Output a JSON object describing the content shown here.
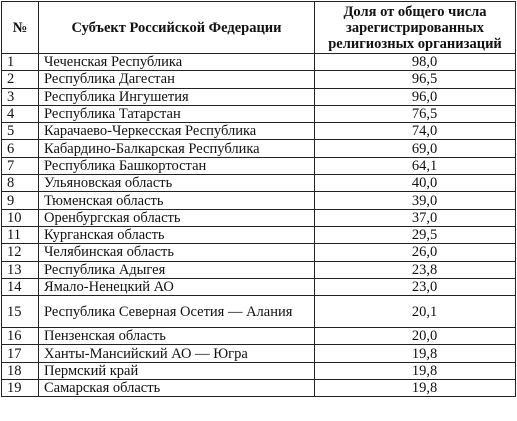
{
  "table": {
    "headers": {
      "num": "№",
      "subject": "Субъект Российской Федерации",
      "share": "Доля от общего числа зарегистрированных религиозных организаций"
    },
    "rows": [
      {
        "n": "1",
        "subject": "Чеченская Республика",
        "value": "98,0"
      },
      {
        "n": "2",
        "subject": "Республика Дагестан",
        "value": "96,5"
      },
      {
        "n": "3",
        "subject": "Республика Ингушетия",
        "value": "96,0"
      },
      {
        "n": "4",
        "subject": "Республика Татарстан",
        "value": "76,5"
      },
      {
        "n": "5",
        "subject": "Карачаево-Черкесская Республика",
        "value": "74,0"
      },
      {
        "n": "6",
        "subject": "Кабардино-Балкарская Республика",
        "value": "69,0"
      },
      {
        "n": "7",
        "subject": "Республика Башкортостан",
        "value": "64,1"
      },
      {
        "n": "8",
        "subject": "Ульяновская область",
        "value": "40,0"
      },
      {
        "n": "9",
        "subject": "Тюменская область",
        "value": "39,0"
      },
      {
        "n": "10",
        "subject": "Оренбургская область",
        "value": "37,0"
      },
      {
        "n": "11",
        "subject": "Курганская область",
        "value": "29,5"
      },
      {
        "n": "12",
        "subject": "Челябинская область",
        "value": "26,0"
      },
      {
        "n": "13",
        "subject": "Республика Адыгея",
        "value": "23,8"
      },
      {
        "n": "14",
        "subject": "Ямало-Ненецкий АО",
        "value": "23,0"
      },
      {
        "n": "15",
        "subject": "Республика Северная Осетия — Алания",
        "value": "20,1"
      },
      {
        "n": "16",
        "subject": "Пензенская область",
        "value": "20,0"
      },
      {
        "n": "17",
        "subject": "Ханты-Мансийский АО — Югра",
        "value": "19,8"
      },
      {
        "n": "18",
        "subject": "Пермский край",
        "value": "19,8"
      },
      {
        "n": "19",
        "subject": "Самарская область",
        "value": "19,8"
      }
    ]
  }
}
